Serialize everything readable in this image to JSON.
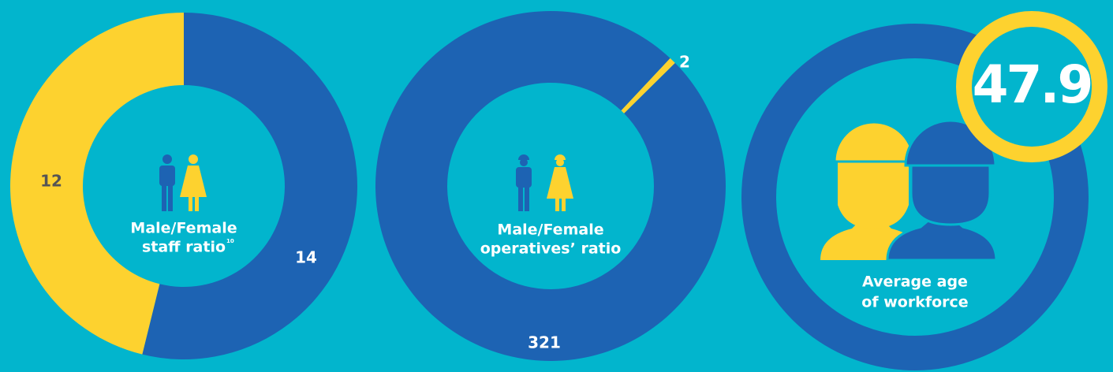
{
  "chart_data": [
    {
      "type": "donut",
      "title": [
        "Male/Female",
        "staff ratio"
      ],
      "footnote": "10",
      "values": [
        14,
        12
      ],
      "colors": [
        "#1d63b3",
        "#fdd22f"
      ]
    },
    {
      "type": "donut",
      "title": [
        "Male/Female",
        "operatives’ ratio"
      ],
      "values": [
        321,
        2
      ],
      "colors": [
        "#1d63b3",
        "#fdd22f"
      ]
    },
    {
      "type": "stat",
      "title": [
        "Average age",
        "of workforce"
      ],
      "value": 47.9
    }
  ]
}
